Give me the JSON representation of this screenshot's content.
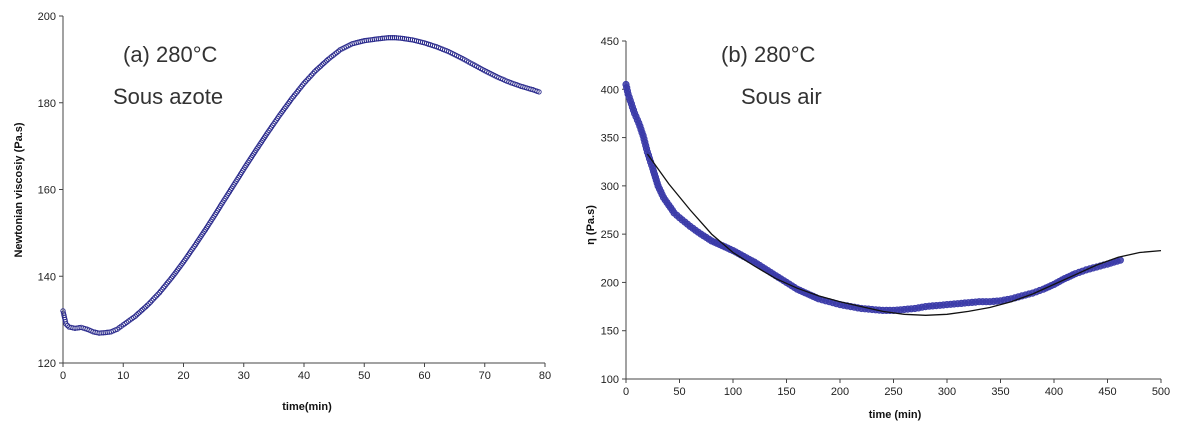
{
  "chart_data": [
    {
      "type": "scatter",
      "annotation_line1": "(a) 280°C",
      "annotation_line2": "Sous azote",
      "xlabel": "time(min)",
      "ylabel": "Newtonian viscosiy (Pa.s)",
      "xlim": [
        0,
        80
      ],
      "ylim": [
        120,
        200
      ],
      "xticks": [
        0,
        10,
        20,
        30,
        40,
        50,
        60,
        70,
        80
      ],
      "yticks": [
        120,
        140,
        160,
        180,
        200
      ],
      "grid": false,
      "marker_color": "#2a2a8c",
      "series": [
        {
          "x": [
            0,
            0.5,
            1,
            2,
            3,
            4,
            5,
            6,
            7,
            8,
            9,
            10,
            12,
            14,
            16,
            18,
            20,
            22,
            24,
            26,
            28,
            30,
            32,
            34,
            36,
            38,
            40,
            42,
            44,
            46,
            48,
            50,
            52,
            54,
            55,
            56,
            58,
            60,
            62,
            64,
            66,
            68,
            70,
            72,
            74,
            76,
            78,
            79
          ],
          "y": [
            132,
            129,
            128.3,
            128,
            128.2,
            127.8,
            127.2,
            126.9,
            127,
            127.2,
            127.8,
            128.8,
            130.8,
            133.3,
            136.2,
            139.6,
            143.3,
            147.3,
            151.5,
            155.9,
            160.3,
            164.7,
            169,
            173.2,
            177.2,
            181,
            184.5,
            187.5,
            190,
            192.2,
            193.6,
            194.3,
            194.7,
            195,
            195,
            194.9,
            194.5,
            193.8,
            192.9,
            191.8,
            190.4,
            188.9,
            187.4,
            186,
            184.8,
            183.8,
            183,
            182.5
          ]
        }
      ]
    },
    {
      "type": "scatter",
      "annotation_line1": "(b) 280°C",
      "annotation_line2": "Sous air",
      "xlabel": "time (min)",
      "ylabel": "η (Pa.s)",
      "xlim": [
        0,
        500
      ],
      "ylim": [
        100,
        450
      ],
      "xticks": [
        0,
        50,
        100,
        150,
        200,
        250,
        300,
        350,
        400,
        450,
        500
      ],
      "yticks": [
        100,
        150,
        200,
        250,
        300,
        350,
        400,
        450
      ],
      "grid": false,
      "marker_color": "#3a3aa8",
      "series": [
        {
          "x": [
            0,
            2,
            5,
            8,
            12,
            16,
            20,
            25,
            30,
            35,
            40,
            45,
            50,
            60,
            70,
            80,
            90,
            100,
            110,
            120,
            130,
            140,
            150,
            160,
            170,
            180,
            190,
            200,
            210,
            220,
            230,
            240,
            250,
            260,
            270,
            280,
            290,
            300,
            310,
            320,
            330,
            340,
            350,
            360,
            370,
            380,
            390,
            400,
            410,
            420,
            430,
            440,
            450,
            462
          ],
          "y": [
            405,
            395,
            385,
            375,
            365,
            352,
            335,
            318,
            300,
            288,
            280,
            272,
            267,
            258,
            250,
            243,
            238,
            233,
            227,
            221,
            214,
            207,
            200,
            193,
            188,
            183,
            180,
            177,
            175,
            173,
            172,
            171,
            171,
            172,
            173,
            175,
            176,
            177,
            178,
            179,
            180,
            180,
            181,
            183,
            186,
            189,
            193,
            198,
            204,
            209,
            213,
            216,
            219,
            223
          ]
        },
        {
          "x": [
            20,
            40,
            60,
            80,
            100,
            120,
            140,
            160,
            180,
            200,
            220,
            240,
            260,
            280,
            300,
            320,
            340,
            360,
            380,
            400,
            420,
            440,
            460,
            480,
            500
          ],
          "y": [
            333,
            302,
            275,
            250,
            231,
            217,
            204,
            194,
            186,
            180,
            175,
            170,
            167,
            166,
            167,
            170,
            174,
            180,
            188,
            198,
            208,
            218,
            226,
            231,
            233
          ]
        }
      ]
    }
  ]
}
